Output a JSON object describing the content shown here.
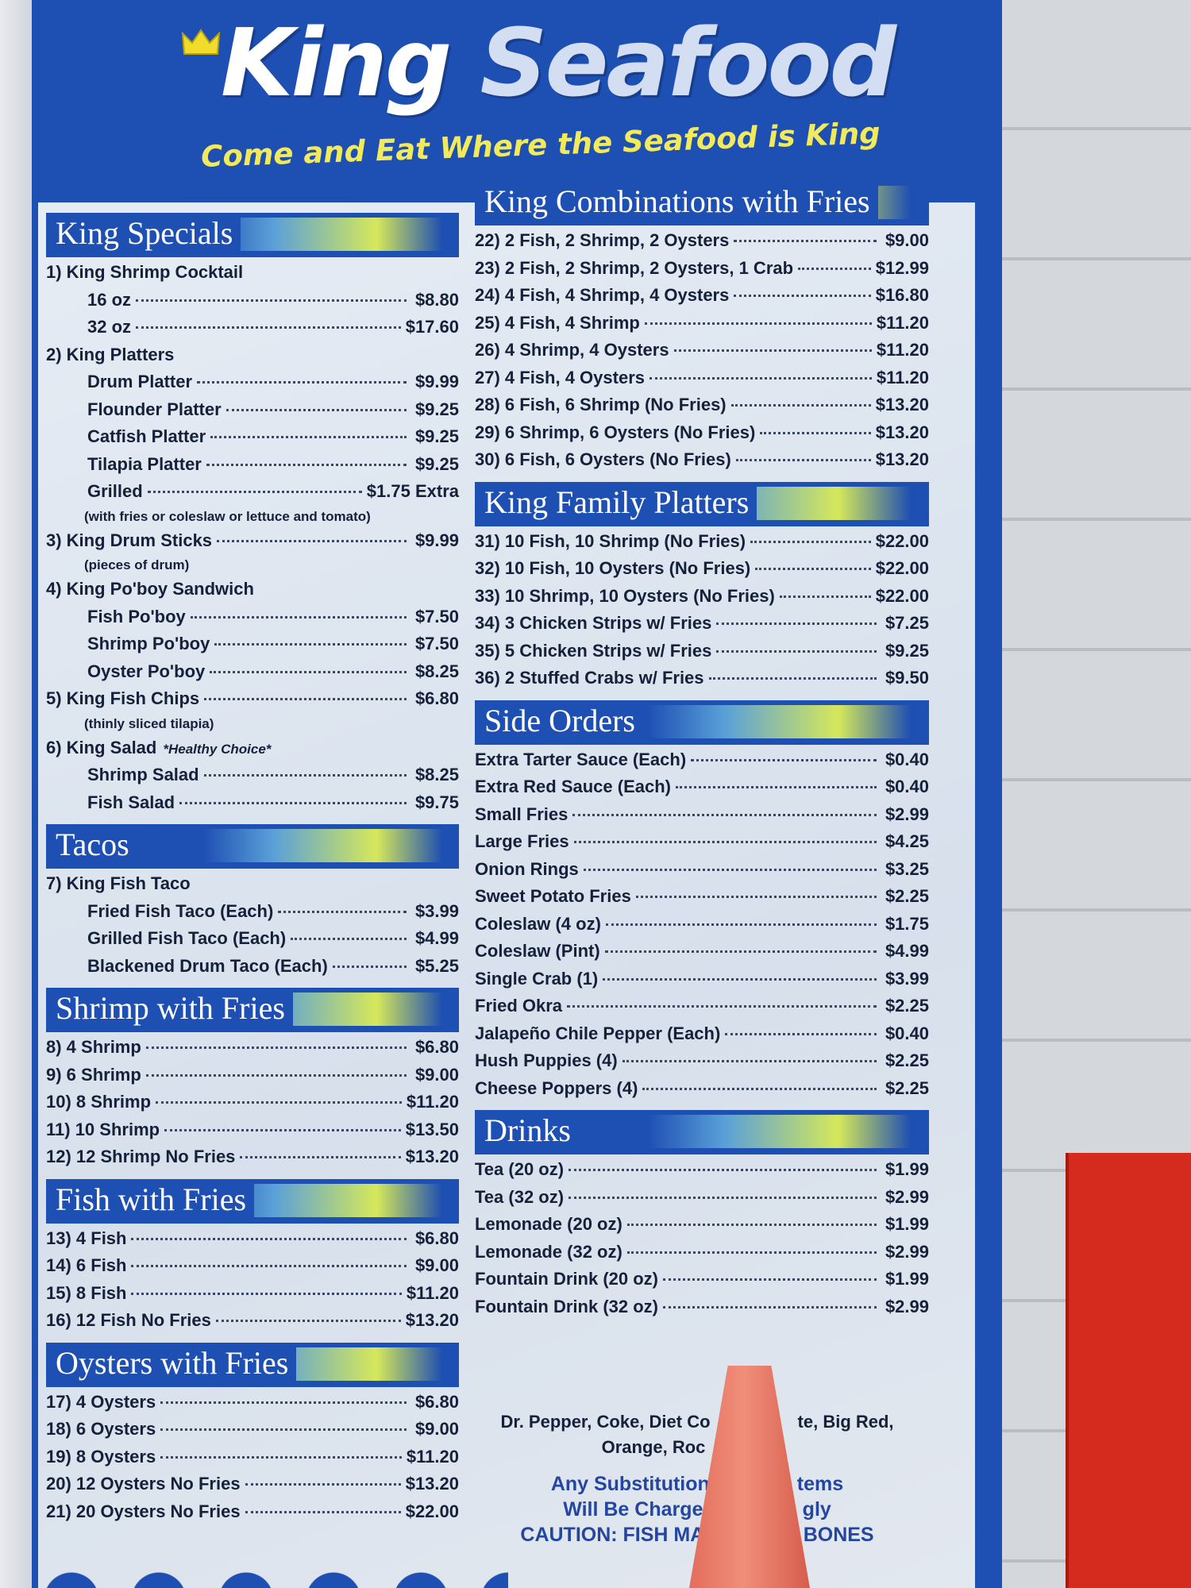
{
  "header": {
    "title_part1": "King",
    "title_part2": "Seafood",
    "tagline": "Come and Eat Where the Seafood is King"
  },
  "colors": {
    "board_blue": "#1e4fb3",
    "panel": "#e3e9f1",
    "accent_yellow": "#f2ea5a",
    "text": "#15213a",
    "cone": "#e36d5c",
    "wall_red": "#d52a1e"
  },
  "icons": {
    "crown": "crown-icon"
  },
  "left_sections": [
    {
      "title": "King Specials",
      "items": [
        {
          "name": "1) King Shrimp Cocktail",
          "price": ""
        },
        {
          "name": "16 oz",
          "price": "$8.80",
          "indent": true
        },
        {
          "name": "32 oz",
          "price": "$17.60",
          "indent": true
        },
        {
          "name": "2) King Platters",
          "price": ""
        },
        {
          "name": "Drum Platter",
          "price": "$9.99",
          "indent": true
        },
        {
          "name": "Flounder Platter",
          "price": "$9.25",
          "indent": true
        },
        {
          "name": "Catfish Platter",
          "price": "$9.25",
          "indent": true
        },
        {
          "name": "Tilapia Platter",
          "price": "$9.25",
          "indent": true
        },
        {
          "name": "Grilled",
          "price": "$1.75 Extra",
          "indent": true
        },
        {
          "name": "(with fries or coleslaw or lettuce and tomato)",
          "note": true
        },
        {
          "name": "3) King Drum Sticks",
          "price": "$9.99"
        },
        {
          "name": "(pieces of drum)",
          "note": true
        },
        {
          "name": "4) King Po'boy Sandwich",
          "price": ""
        },
        {
          "name": "Fish Po'boy",
          "price": "$7.50",
          "indent": true
        },
        {
          "name": "Shrimp Po'boy",
          "price": "$7.50",
          "indent": true
        },
        {
          "name": "Oyster Po'boy",
          "price": "$8.25",
          "indent": true
        },
        {
          "name": "5) King Fish Chips",
          "price": "$6.80"
        },
        {
          "name": "(thinly sliced tilapia)",
          "note": true
        },
        {
          "name": "6) King Salad",
          "extra": "*Healthy Choice*",
          "price": ""
        },
        {
          "name": "Shrimp Salad",
          "price": "$8.25",
          "indent": true
        },
        {
          "name": "Fish Salad",
          "price": "$9.75",
          "indent": true
        }
      ]
    },
    {
      "title": "Tacos",
      "items": [
        {
          "name": "7) King Fish Taco",
          "price": ""
        },
        {
          "name": "Fried Fish Taco (Each)",
          "price": "$3.99",
          "indent": true
        },
        {
          "name": "Grilled Fish Taco (Each)",
          "price": "$4.99",
          "indent": true
        },
        {
          "name": "Blackened Drum Taco (Each)",
          "price": "$5.25",
          "indent": true
        }
      ]
    },
    {
      "title": "Shrimp with Fries",
      "items": [
        {
          "name": "8)   4 Shrimp",
          "price": "$6.80"
        },
        {
          "name": "9)   6 Shrimp",
          "price": "$9.00"
        },
        {
          "name": "10)  8 Shrimp",
          "price": "$11.20"
        },
        {
          "name": "11)  10 Shrimp",
          "price": "$13.50"
        },
        {
          "name": "12)  12 Shrimp No Fries",
          "price": "$13.20"
        }
      ]
    },
    {
      "title": "Fish with Fries",
      "items": [
        {
          "name": "13)  4 Fish",
          "price": "$6.80"
        },
        {
          "name": "14)  6 Fish",
          "price": "$9.00"
        },
        {
          "name": "15)  8 Fish",
          "price": "$11.20"
        },
        {
          "name": "16)  12 Fish No Fries",
          "price": "$13.20"
        }
      ]
    },
    {
      "title": "Oysters with Fries",
      "items": [
        {
          "name": "17)  4 Oysters",
          "price": "$6.80"
        },
        {
          "name": "18)  6 Oysters",
          "price": "$9.00"
        },
        {
          "name": "19)  8 Oysters",
          "price": "$11.20"
        },
        {
          "name": "20)  12 Oysters No Fries",
          "price": "$13.20"
        },
        {
          "name": "21)  20 Oysters No Fries",
          "price": "$22.00"
        }
      ]
    }
  ],
  "right_sections": [
    {
      "title": "King Combinations with Fries",
      "items": [
        {
          "name": "22) 2 Fish, 2 Shrimp, 2 Oysters",
          "price": "$9.00"
        },
        {
          "name": "23) 2 Fish, 2 Shrimp, 2 Oysters, 1 Crab",
          "price": "$12.99"
        },
        {
          "name": "24) 4 Fish, 4 Shrimp, 4 Oysters",
          "price": "$16.80"
        },
        {
          "name": "25) 4 Fish, 4 Shrimp",
          "price": "$11.20"
        },
        {
          "name": "26) 4 Shrimp, 4 Oysters",
          "price": "$11.20"
        },
        {
          "name": "27) 4 Fish, 4 Oysters",
          "price": "$11.20"
        },
        {
          "name": "28) 6 Fish, 6 Shrimp (No Fries)",
          "price": "$13.20"
        },
        {
          "name": "29) 6 Shrimp, 6 Oysters (No Fries)",
          "price": "$13.20"
        },
        {
          "name": "30) 6 Fish, 6 Oysters (No Fries)",
          "price": "$13.20"
        }
      ]
    },
    {
      "title": "King Family Platters",
      "items": [
        {
          "name": "31) 10 Fish, 10 Shrimp (No Fries)",
          "price": "$22.00"
        },
        {
          "name": "32) 10 Fish, 10 Oysters (No Fries)",
          "price": "$22.00"
        },
        {
          "name": "33) 10 Shrimp, 10 Oysters (No Fries)",
          "price": "$22.00"
        },
        {
          "name": "34) 3 Chicken Strips w/ Fries",
          "price": "$7.25"
        },
        {
          "name": "35) 5 Chicken Strips w/ Fries",
          "price": "$9.25"
        },
        {
          "name": "36) 2 Stuffed Crabs w/ Fries",
          "price": "$9.50"
        }
      ]
    },
    {
      "title": "Side Orders",
      "items": [
        {
          "name": "Extra Tarter Sauce (Each)",
          "price": "$0.40"
        },
        {
          "name": "Extra Red Sauce (Each)",
          "price": "$0.40"
        },
        {
          "name": "Small Fries",
          "price": "$2.99"
        },
        {
          "name": "Large Fries",
          "price": "$4.25"
        },
        {
          "name": "Onion Rings",
          "price": "$3.25"
        },
        {
          "name": "Sweet Potato Fries",
          "price": "$2.25"
        },
        {
          "name": "Coleslaw (4 oz)",
          "price": "$1.75"
        },
        {
          "name": "Coleslaw (Pint)",
          "price": "$4.99"
        },
        {
          "name": "Single Crab (1)",
          "price": "$3.99"
        },
        {
          "name": "Fried Okra",
          "price": "$2.25"
        },
        {
          "name": "Jalapeño Chile Pepper (Each)",
          "price": "$0.40"
        },
        {
          "name": "Hush Puppies (4)",
          "price": "$2.25"
        },
        {
          "name": "Cheese Poppers (4)",
          "price": "$2.25"
        }
      ]
    },
    {
      "title": "Drinks",
      "items": [
        {
          "name": "Tea (20 oz)",
          "price": "$1.99"
        },
        {
          "name": "Tea (32 oz)",
          "price": "$2.99"
        },
        {
          "name": "Lemonade (20 oz)",
          "price": "$1.99"
        },
        {
          "name": "Lemonade (32 oz)",
          "price": "$2.99"
        },
        {
          "name": "Fountain Drink (20 oz)",
          "price": "$1.99"
        },
        {
          "name": "Fountain Drink (32 oz)",
          "price": "$2.99"
        }
      ]
    }
  ],
  "notes": [
    {
      "left": "Dr. Pepper, Coke, Diet Co",
      "right": "te, Big Red,",
      "style": "dark"
    },
    {
      "left": "Orange, Roc",
      "right": "",
      "style": "dark"
    },
    {
      "left": "Any Substitution",
      "right": "tems",
      "style": "blue"
    },
    {
      "left": "Will Be Charged",
      "right": "gly",
      "style": "blue"
    },
    {
      "left": "CAUTION: FISH MAY",
      "right": "BONES",
      "style": "blue"
    }
  ]
}
